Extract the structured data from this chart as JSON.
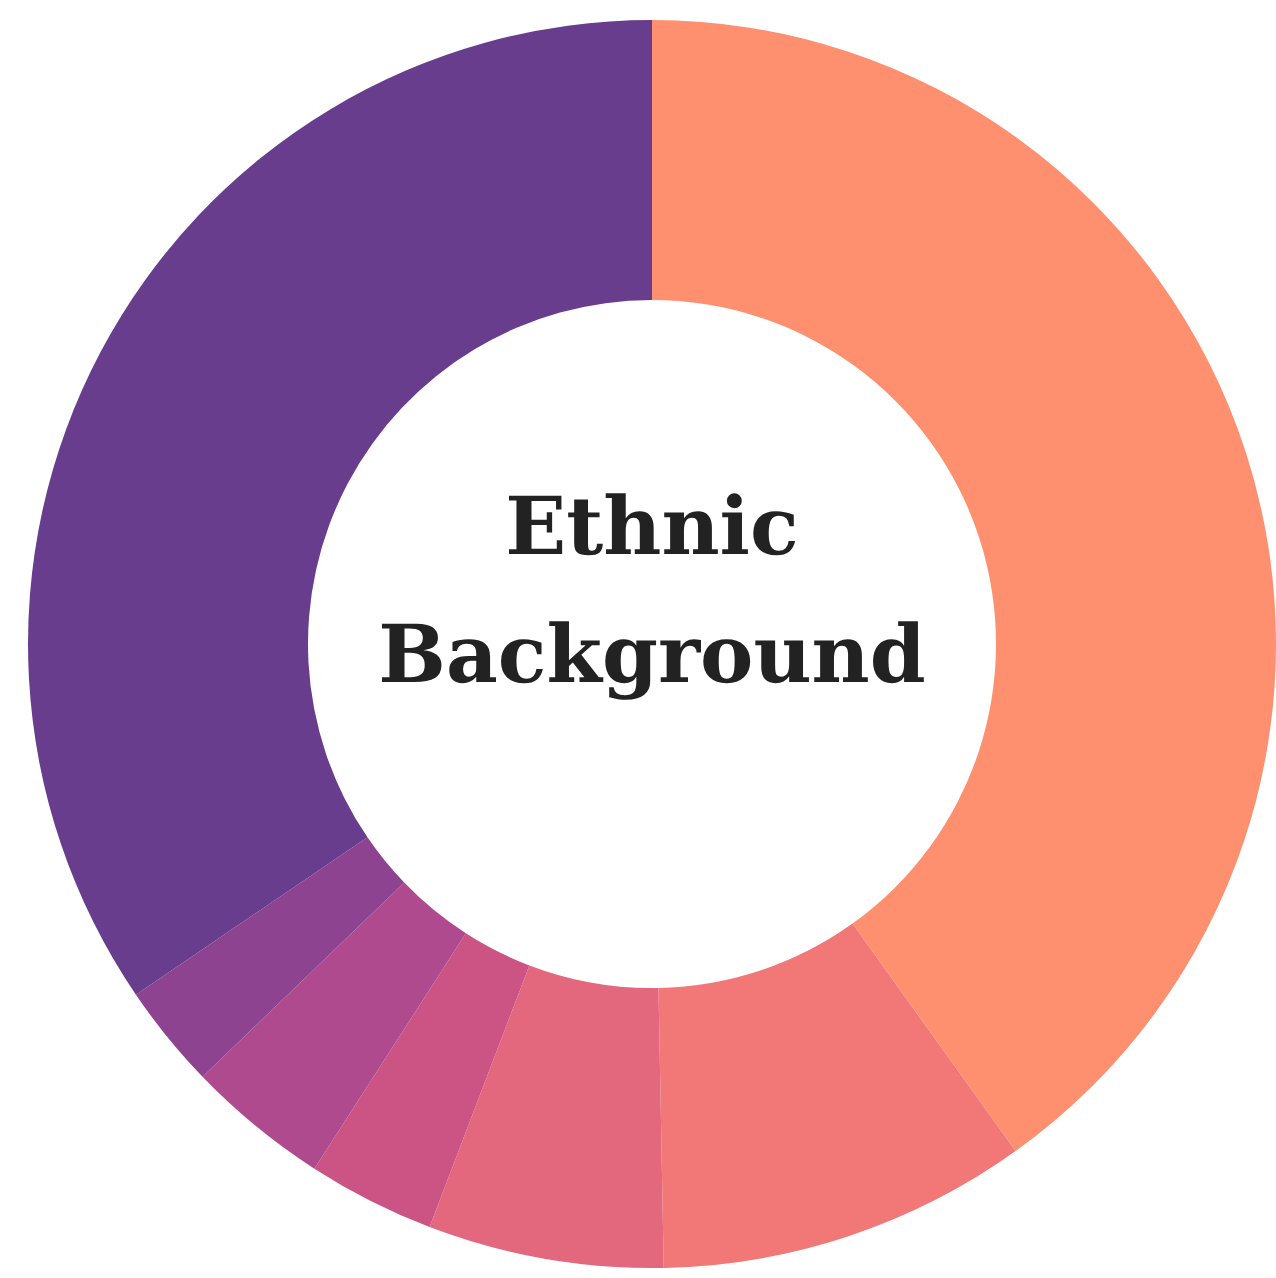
{
  "chart_data": {
    "type": "donut",
    "title": "Ethnic Background",
    "categories": [
      null,
      null,
      null,
      null,
      null,
      null,
      null
    ],
    "values": [
      40.1,
      9.6,
      6.1,
      3.3,
      3.7,
      2.7,
      34.5
    ],
    "colors": [
      "#fe9070",
      "#f27878",
      "#e4687d",
      "#cc5485",
      "#b04a8e",
      "#8e4390",
      "#693d8d"
    ]
  }
}
